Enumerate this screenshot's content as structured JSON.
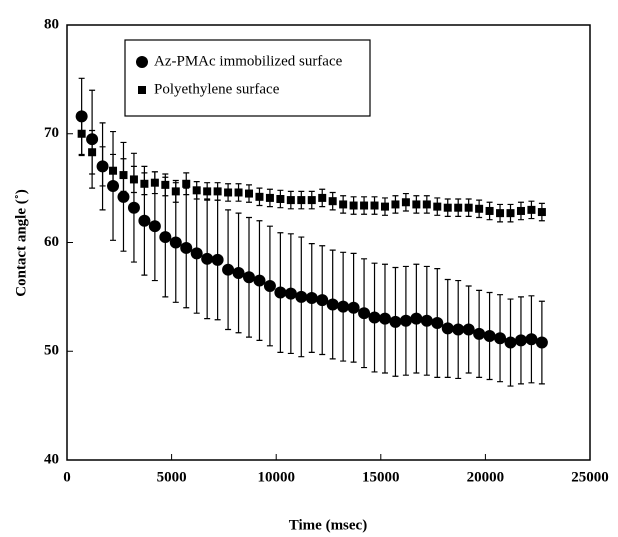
{
  "chart_data": {
    "type": "scatter",
    "xlabel": "Time (msec)",
    "ylabel": "Contact angle (˚)",
    "xlim": [
      0,
      25000
    ],
    "xticks": [
      0,
      5000,
      10000,
      15000,
      20000,
      25000
    ],
    "ylim": [
      40,
      80
    ],
    "yticks": [
      40,
      50,
      60,
      70,
      80
    ],
    "x": [
      700,
      1200,
      1700,
      2200,
      2700,
      3200,
      3700,
      4200,
      4700,
      5200,
      5700,
      6200,
      6700,
      7200,
      7700,
      8200,
      8700,
      9200,
      9700,
      10200,
      10700,
      11200,
      11700,
      12200,
      12700,
      13200,
      13700,
      14200,
      14700,
      15200,
      15700,
      16200,
      16700,
      17200,
      17700,
      18200,
      18700,
      19200,
      19700,
      20200,
      20700,
      21200,
      21700,
      22200,
      22700
    ],
    "series": [
      {
        "name": "Az-PMAc immobilized surface",
        "color": "#000000",
        "marker": "circle",
        "values": [
          71.6,
          69.5,
          67,
          65.2,
          64.2,
          63.2,
          62,
          61.5,
          60.5,
          60,
          59.5,
          59,
          58.5,
          58.4,
          57.5,
          57.2,
          56.8,
          56.5,
          56,
          55.4,
          55.3,
          55,
          54.9,
          54.7,
          54.3,
          54.1,
          54,
          53.5,
          53.1,
          53,
          52.7,
          52.8,
          53,
          52.8,
          52.6,
          52.1,
          52,
          52,
          51.6,
          51.4,
          51.2,
          50.8,
          51,
          51.1,
          50.8
        ],
        "errors": [
          3.5,
          4.5,
          4,
          5,
          5,
          5,
          5,
          5,
          5.5,
          5.5,
          5.5,
          5.5,
          5.5,
          5.5,
          5.5,
          5.5,
          5.5,
          5.5,
          5.5,
          5.5,
          5.5,
          5.5,
          5,
          5,
          5,
          5,
          5,
          5,
          5,
          5,
          5,
          5,
          5,
          5,
          5,
          4.5,
          4.5,
          4,
          4,
          4,
          4,
          4,
          4,
          4,
          3.8
        ]
      },
      {
        "name": "Polyethylene surface",
        "color": "#000000",
        "marker": "square",
        "values": [
          70,
          68.3,
          67,
          66.6,
          66.2,
          65.8,
          65.4,
          65.5,
          65.3,
          64.7,
          65.4,
          64.8,
          64.7,
          64.7,
          64.6,
          64.6,
          64.5,
          64.2,
          64.1,
          64,
          63.9,
          63.9,
          63.9,
          64.1,
          63.8,
          63.5,
          63.4,
          63.4,
          63.4,
          63.3,
          63.5,
          63.7,
          63.5,
          63.5,
          63.3,
          63.2,
          63.2,
          63.2,
          63.1,
          62.9,
          62.7,
          62.7,
          62.9,
          63,
          62.8
        ],
        "errors": [
          2,
          2,
          1.8,
          1.5,
          1.5,
          1.2,
          1,
          1,
          1,
          1,
          1,
          0.8,
          0.8,
          0.8,
          0.8,
          0.8,
          0.8,
          0.8,
          0.8,
          0.8,
          0.8,
          0.8,
          0.8,
          0.8,
          0.8,
          0.8,
          0.8,
          0.8,
          0.8,
          0.8,
          0.8,
          0.8,
          0.8,
          0.8,
          0.8,
          0.8,
          0.8,
          0.8,
          0.8,
          0.8,
          0.8,
          0.8,
          0.8,
          0.8,
          0.8
        ]
      }
    ]
  }
}
